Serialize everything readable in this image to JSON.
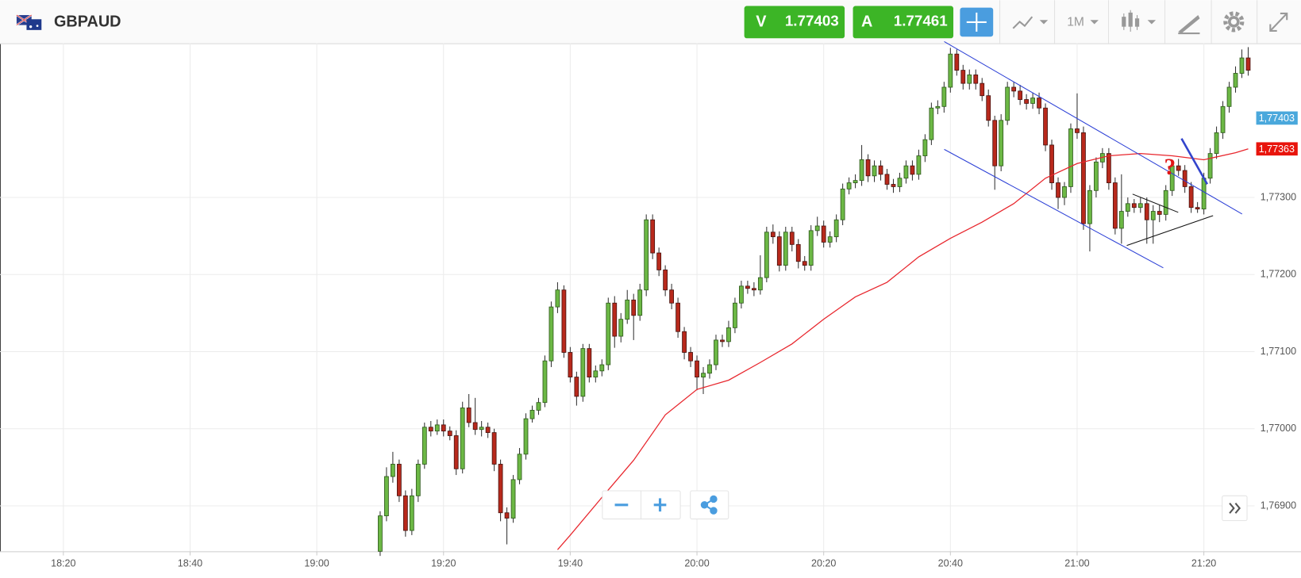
{
  "header": {
    "symbol": "GBPAUD",
    "sell_label": "V",
    "sell_price": 1.77403,
    "buy_label": "A",
    "buy_price": 1.77461,
    "timeframe": "1M"
  },
  "chart_data": {
    "type": "candlestick",
    "x": [
      "19:10",
      "19:11",
      "19:12",
      "19:13",
      "19:14",
      "19:15",
      "19:16",
      "19:17",
      "19:18",
      "19:19",
      "19:20",
      "19:21",
      "19:22",
      "19:23",
      "19:24",
      "19:25",
      "19:26",
      "19:27",
      "19:28",
      "19:29",
      "19:30",
      "19:31",
      "19:32",
      "19:33",
      "19:34",
      "19:35",
      "19:36",
      "19:37",
      "19:38",
      "19:39",
      "19:40",
      "19:41",
      "19:42",
      "19:43",
      "19:44",
      "19:45",
      "19:46",
      "19:47",
      "19:48",
      "19:49",
      "19:50",
      "19:51",
      "19:52",
      "19:53",
      "19:54",
      "19:55",
      "19:56",
      "19:57",
      "19:58",
      "19:59",
      "20:00",
      "20:01",
      "20:02",
      "20:03",
      "20:04",
      "20:05",
      "20:06",
      "20:07",
      "20:08",
      "20:09",
      "20:10",
      "20:11",
      "20:12",
      "20:13",
      "20:14",
      "20:15",
      "20:16",
      "20:17",
      "20:18",
      "20:19",
      "20:20",
      "20:21",
      "20:22",
      "20:23",
      "20:24",
      "20:25",
      "20:26",
      "20:27",
      "20:28",
      "20:29",
      "20:30",
      "20:31",
      "20:32",
      "20:33",
      "20:34",
      "20:35",
      "20:36",
      "20:37",
      "20:38",
      "20:39",
      "20:40",
      "20:41",
      "20:42",
      "20:43",
      "20:44",
      "20:45",
      "20:46",
      "20:47",
      "20:48",
      "20:49",
      "20:50",
      "20:51",
      "20:52",
      "20:53",
      "20:54",
      "20:55",
      "20:56",
      "20:57",
      "20:58",
      "20:59",
      "21:00",
      "21:01",
      "21:02",
      "21:03",
      "21:04",
      "21:05",
      "21:06",
      "21:07",
      "21:08",
      "21:09",
      "21:10",
      "21:11",
      "21:12",
      "21:13",
      "21:14",
      "21:15",
      "21:16",
      "21:17",
      "21:18",
      "21:19",
      "21:20",
      "21:21",
      "21:22",
      "21:23",
      "21:24",
      "21:25",
      "21:26",
      "21:27"
    ],
    "open": [
      1.76841,
      1.76887,
      1.76938,
      1.76954,
      1.76913,
      1.76868,
      1.76913,
      1.76954,
      1.77002,
      1.76997,
      1.77005,
      1.76997,
      1.76991,
      1.76948,
      1.77027,
      1.77008,
      1.76999,
      1.77002,
      1.76995,
      1.76954,
      1.76891,
      1.76884,
      1.76934,
      1.76967,
      1.77013,
      1.77024,
      1.77034,
      1.77088,
      1.77158,
      1.7718,
      1.77099,
      1.77067,
      1.77042,
      1.77104,
      1.77067,
      1.77075,
      1.77083,
      1.77163,
      1.7712,
      1.77142,
      1.77167,
      1.77147,
      1.7718,
      1.77271,
      1.77228,
      1.77206,
      1.7718,
      1.77163,
      1.77126,
      1.77099,
      1.77088,
      1.77067,
      1.77072,
      1.77083,
      1.77115,
      1.77113,
      1.77131,
      1.77163,
      1.77185,
      1.77182,
      1.7718,
      1.77196,
      1.77255,
      1.77249,
      1.77212,
      1.77255,
      1.77239,
      1.77217,
      1.77212,
      1.77257,
      1.77263,
      1.77242,
      1.77249,
      1.77271,
      1.77311,
      1.77319,
      1.77322,
      1.77349,
      1.77328,
      1.77341,
      1.7733,
      1.77317,
      1.77314,
      1.77325,
      1.77341,
      1.7733,
      1.77354,
      1.77375,
      1.77416,
      1.77418,
      1.77443,
      1.77486,
      1.77465,
      1.77448,
      1.77459,
      1.77448,
      1.77432,
      1.774,
      1.77341,
      1.774,
      1.77443,
      1.77438,
      1.77427,
      1.77422,
      1.77429,
      1.77416,
      1.77368,
      1.77319,
      1.773,
      1.77314,
      1.77389,
      1.77384,
      1.77266,
      1.77309,
      1.77346,
      1.77357,
      1.77319,
      1.7726,
      1.77282,
      1.77292,
      1.77287,
      1.77292,
      1.77271,
      1.77282,
      1.77278,
      1.77309,
      1.77341,
      1.77335,
      1.77314,
      1.77287,
      1.77285,
      1.77325,
      1.77357,
      1.77384,
      1.77418,
      1.77443,
      1.77461,
      1.77481
    ],
    "high": [
      1.76893,
      1.7695,
      1.7697,
      1.7696,
      1.7692,
      1.76922,
      1.7696,
      1.77008,
      1.7701,
      1.77012,
      1.77012,
      1.77003,
      1.76998,
      1.77035,
      1.77045,
      1.7704,
      1.7701,
      1.77008,
      1.77,
      1.7696,
      1.76898,
      1.7694,
      1.76975,
      1.7702,
      1.7703,
      1.7704,
      1.77095,
      1.77165,
      1.7719,
      1.77186,
      1.77106,
      1.77074,
      1.7711,
      1.7711,
      1.77082,
      1.7709,
      1.7717,
      1.77172,
      1.7715,
      1.7718,
      1.77175,
      1.77188,
      1.77278,
      1.77278,
      1.77235,
      1.77212,
      1.77188,
      1.7717,
      1.77132,
      1.77106,
      1.77095,
      1.7708,
      1.7709,
      1.77122,
      1.77122,
      1.7714,
      1.7717,
      1.77192,
      1.77192,
      1.7719,
      1.77225,
      1.77262,
      1.77265,
      1.77256,
      1.77262,
      1.77262,
      1.77246,
      1.77224,
      1.77264,
      1.77275,
      1.7727,
      1.77256,
      1.77278,
      1.77318,
      1.77326,
      1.7733,
      1.77368,
      1.77356,
      1.77348,
      1.77348,
      1.77337,
      1.77324,
      1.77332,
      1.77348,
      1.77348,
      1.77362,
      1.77382,
      1.77423,
      1.77426,
      1.7745,
      1.77494,
      1.77492,
      1.77472,
      1.77466,
      1.77466,
      1.77455,
      1.7744,
      1.77406,
      1.77408,
      1.7745,
      1.7745,
      1.77446,
      1.77434,
      1.77436,
      1.77436,
      1.77422,
      1.77375,
      1.77326,
      1.7732,
      1.77396,
      1.77435,
      1.77392,
      1.77316,
      1.77352,
      1.77364,
      1.77364,
      1.77326,
      1.7733,
      1.773,
      1.77298,
      1.773,
      1.773,
      1.7729,
      1.7729,
      1.77316,
      1.77348,
      1.7735,
      1.77342,
      1.7732,
      1.77294,
      1.77332,
      1.77364,
      1.77392,
      1.77425,
      1.7745,
      1.7747,
      1.77492,
      1.77495
    ],
    "low": [
      1.76835,
      1.7688,
      1.7693,
      1.76905,
      1.7686,
      1.76862,
      1.76905,
      1.76948,
      1.7699,
      1.76992,
      1.7699,
      1.76985,
      1.7694,
      1.76942,
      1.77002,
      1.76992,
      1.7699,
      1.76988,
      1.76945,
      1.7688,
      1.7685,
      1.76878,
      1.76928,
      1.7696,
      1.77008,
      1.77018,
      1.77028,
      1.7708,
      1.7715,
      1.77092,
      1.7706,
      1.7703,
      1.77035,
      1.7706,
      1.7706,
      1.77068,
      1.77076,
      1.77105,
      1.77112,
      1.77136,
      1.77115,
      1.7714,
      1.77172,
      1.7722,
      1.77198,
      1.77172,
      1.77155,
      1.77118,
      1.7709,
      1.7708,
      1.7705,
      1.77045,
      1.77065,
      1.77076,
      1.77106,
      1.77106,
      1.77124,
      1.77156,
      1.77175,
      1.77172,
      1.77174,
      1.7719,
      1.7724,
      1.77204,
      1.77205,
      1.7723,
      1.77208,
      1.77205,
      1.77205,
      1.7725,
      1.77235,
      1.77235,
      1.77242,
      1.77264,
      1.77304,
      1.77312,
      1.77315,
      1.7732,
      1.7732,
      1.77322,
      1.7731,
      1.77306,
      1.77307,
      1.77318,
      1.77322,
      1.77323,
      1.77346,
      1.77368,
      1.77408,
      1.7741,
      1.77436,
      1.77458,
      1.7744,
      1.7744,
      1.7744,
      1.77425,
      1.77392,
      1.7731,
      1.77334,
      1.77394,
      1.7743,
      1.7742,
      1.77414,
      1.77415,
      1.77408,
      1.7736,
      1.7731,
      1.77285,
      1.7729,
      1.77306,
      1.77376,
      1.77258,
      1.7723,
      1.773,
      1.77338,
      1.7731,
      1.77252,
      1.7724,
      1.77275,
      1.7728,
      1.7728,
      1.7724,
      1.7724,
      1.77268,
      1.7727,
      1.77302,
      1.77328,
      1.77306,
      1.7728,
      1.7728,
      1.77278,
      1.77318,
      1.7735,
      1.77376,
      1.7741,
      1.77436,
      1.77455,
      1.77458
    ],
    "close": [
      1.76887,
      1.76938,
      1.76954,
      1.76913,
      1.76868,
      1.76913,
      1.76954,
      1.77002,
      1.76997,
      1.77005,
      1.76997,
      1.76991,
      1.76948,
      1.77027,
      1.77008,
      1.76999,
      1.77002,
      1.76995,
      1.76954,
      1.76891,
      1.76884,
      1.76934,
      1.76967,
      1.77013,
      1.77024,
      1.77034,
      1.77088,
      1.77158,
      1.7718,
      1.77099,
      1.77067,
      1.77042,
      1.77104,
      1.77067,
      1.77075,
      1.77083,
      1.77163,
      1.7712,
      1.77142,
      1.77167,
      1.77147,
      1.7718,
      1.77271,
      1.77228,
      1.77206,
      1.7718,
      1.77163,
      1.77126,
      1.77099,
      1.77088,
      1.77067,
      1.77072,
      1.77083,
      1.77115,
      1.77113,
      1.77131,
      1.77163,
      1.77185,
      1.77182,
      1.7718,
      1.77196,
      1.77255,
      1.77249,
      1.77212,
      1.77255,
      1.77239,
      1.77217,
      1.77212,
      1.77257,
      1.77263,
      1.77242,
      1.77249,
      1.77271,
      1.77311,
      1.77319,
      1.77322,
      1.77349,
      1.77328,
      1.77341,
      1.7733,
      1.77317,
      1.77314,
      1.77325,
      1.77341,
      1.7733,
      1.77354,
      1.77375,
      1.77416,
      1.77418,
      1.77443,
      1.77486,
      1.77465,
      1.77448,
      1.77459,
      1.77448,
      1.77432,
      1.774,
      1.77341,
      1.774,
      1.77443,
      1.77438,
      1.77427,
      1.77422,
      1.77429,
      1.77416,
      1.77368,
      1.77319,
      1.773,
      1.77314,
      1.77389,
      1.77384,
      1.77266,
      1.77309,
      1.77346,
      1.77357,
      1.77319,
      1.7726,
      1.77282,
      1.77292,
      1.77287,
      1.77292,
      1.77271,
      1.77282,
      1.77278,
      1.77309,
      1.77341,
      1.77335,
      1.77314,
      1.77287,
      1.77285,
      1.77325,
      1.77357,
      1.77384,
      1.77418,
      1.77443,
      1.77461,
      1.77481,
      1.77465
    ],
    "up_color": "#6cb845",
    "down_color": "#b8291c",
    "ma": {
      "color": "#e8262d",
      "x": [
        "19:38",
        "19:40",
        "19:45",
        "19:50",
        "19:55",
        "20:00",
        "20:05",
        "20:10",
        "20:15",
        "20:20",
        "20:25",
        "20:30",
        "20:35",
        "20:40",
        "20:45",
        "20:50",
        "20:55",
        "21:00",
        "21:05",
        "21:10",
        "21:15",
        "21:20",
        "21:25",
        "21:27"
      ],
      "values": [
        1.76843,
        1.76862,
        1.76911,
        1.76959,
        1.77018,
        1.77051,
        1.77063,
        1.77086,
        1.7711,
        1.77142,
        1.77171,
        1.7719,
        1.77223,
        1.77247,
        1.77268,
        1.77292,
        1.77325,
        1.77344,
        1.77354,
        1.77357,
        1.77354,
        1.77349,
        1.77358,
        1.77363
      ]
    },
    "xlim": [
      "18:10",
      "21:28"
    ],
    "xticks": [
      "18:20",
      "18:40",
      "19:00",
      "19:20",
      "19:40",
      "20:00",
      "20:20",
      "20:40",
      "21:00",
      "21:20"
    ],
    "ylim": [
      1.76841,
      1.775
    ],
    "yticks": [
      {
        "value": 1.769,
        "label": "1,76900"
      },
      {
        "value": 1.77,
        "label": "1,77000"
      },
      {
        "value": 1.771,
        "label": "1,77100"
      },
      {
        "value": 1.772,
        "label": "1,77200"
      },
      {
        "value": 1.773,
        "label": "1,77300"
      }
    ],
    "grid": true,
    "price_markers": [
      {
        "value": 1.77403,
        "label": "1,77403",
        "color": "#4aa8dc"
      },
      {
        "value": 1.77363,
        "label": "1,77363",
        "color": "#e8140c"
      }
    ],
    "annotation": "?"
  }
}
